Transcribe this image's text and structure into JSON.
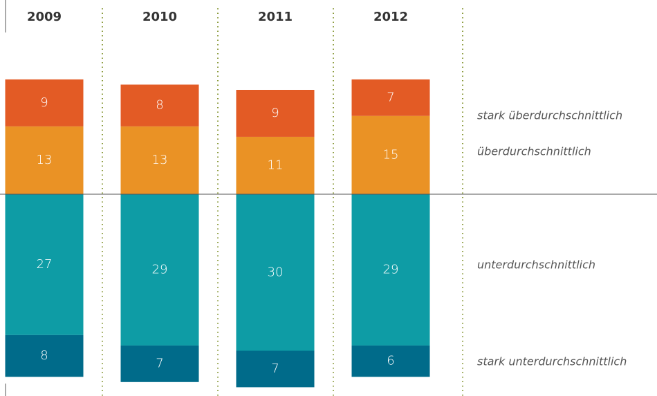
{
  "chart_data": {
    "type": "diverging-bar",
    "categories": [
      "2009",
      "2010",
      "2011",
      "2012"
    ],
    "series": [
      {
        "name": "stark überdurchschnittlich",
        "color": "#e35b25",
        "stack": "above",
        "values": [
          9,
          8,
          9,
          7
        ]
      },
      {
        "name": "überdurchschnittlich",
        "color": "#ea9225",
        "stack": "above",
        "values": [
          13,
          13,
          11,
          15
        ]
      },
      {
        "name": "unterdurchschnittlich",
        "color": "#0e9ca5",
        "stack": "below",
        "values": [
          27,
          29,
          30,
          29
        ]
      },
      {
        "name": "stark unterdurchschnittlich",
        "color": "#006b8a",
        "stack": "below",
        "values": [
          8,
          7,
          7,
          6
        ]
      }
    ]
  }
}
